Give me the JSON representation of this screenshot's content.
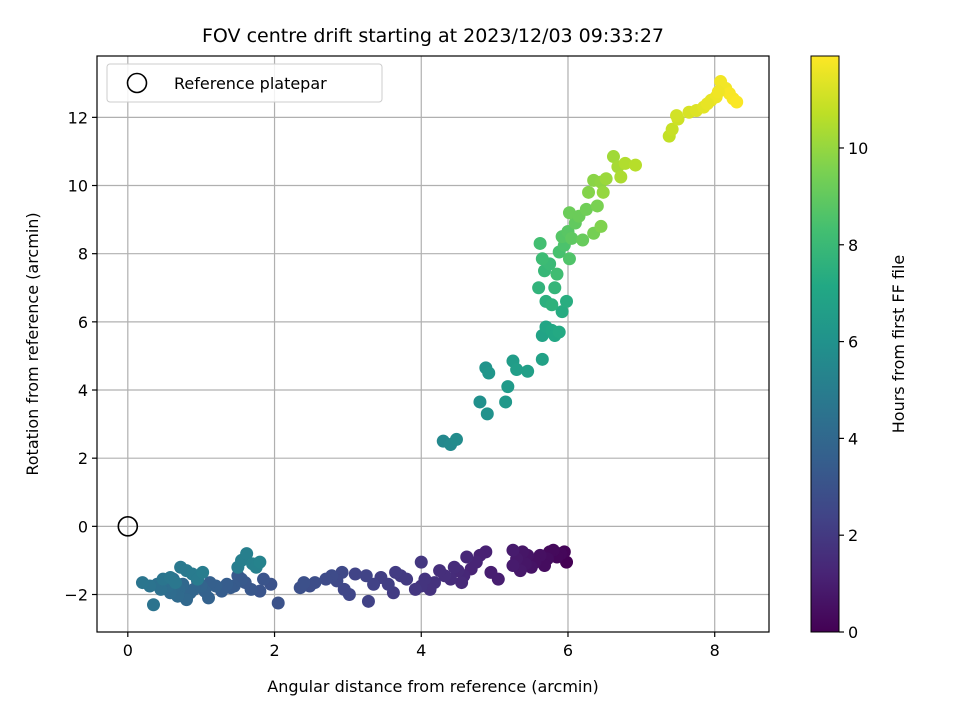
{
  "chart_data": {
    "type": "scatter",
    "title": "FOV centre drift starting at 2023/12/03 09:33:27",
    "xlabel": "Angular distance from reference (arcmin)",
    "ylabel": "Rotation from reference (arcmin)",
    "xlim": [
      -0.42,
      8.74
    ],
    "ylim": [
      -3.1,
      13.8
    ],
    "xticks": [
      0,
      2,
      4,
      6,
      8
    ],
    "yticks": [
      -2,
      0,
      2,
      4,
      6,
      8,
      10,
      12
    ],
    "grid": true,
    "legend": {
      "placement": "top-left",
      "entries": [
        "Reference platepar"
      ]
    },
    "reference_point": {
      "x": 0,
      "y": 0,
      "label": "Reference platepar"
    },
    "colorbar": {
      "label": "Hours from first FF file",
      "colormap": "viridis",
      "range": [
        0,
        11.9
      ],
      "ticks": [
        0,
        2,
        4,
        6,
        8,
        10
      ]
    },
    "points": [
      {
        "x": 5.98,
        "y": -1.05,
        "h": 0.0
      },
      {
        "x": 5.95,
        "y": -0.75,
        "h": 0.1
      },
      {
        "x": 5.9,
        "y": -0.8,
        "h": 0.2
      },
      {
        "x": 5.85,
        "y": -0.9,
        "h": 0.2
      },
      {
        "x": 5.8,
        "y": -0.7,
        "h": 0.3
      },
      {
        "x": 5.75,
        "y": -0.75,
        "h": 0.3
      },
      {
        "x": 5.72,
        "y": -0.95,
        "h": 0.4
      },
      {
        "x": 5.68,
        "y": -1.15,
        "h": 0.4
      },
      {
        "x": 5.62,
        "y": -0.85,
        "h": 0.5
      },
      {
        "x": 5.55,
        "y": -1.05,
        "h": 0.5
      },
      {
        "x": 5.5,
        "y": -1.2,
        "h": 0.6
      },
      {
        "x": 5.45,
        "y": -0.85,
        "h": 0.6
      },
      {
        "x": 5.42,
        "y": -1.1,
        "h": 0.7
      },
      {
        "x": 5.38,
        "y": -0.75,
        "h": 0.7
      },
      {
        "x": 5.35,
        "y": -1.3,
        "h": 0.8
      },
      {
        "x": 5.3,
        "y": -0.95,
        "h": 0.8
      },
      {
        "x": 5.25,
        "y": -0.7,
        "h": 0.9
      },
      {
        "x": 5.25,
        "y": -1.15,
        "h": 0.9
      },
      {
        "x": 5.05,
        "y": -1.55,
        "h": 1.0
      },
      {
        "x": 4.95,
        "y": -1.35,
        "h": 1.0
      },
      {
        "x": 4.88,
        "y": -0.75,
        "h": 1.1
      },
      {
        "x": 4.8,
        "y": -0.85,
        "h": 1.1
      },
      {
        "x": 4.75,
        "y": -1.05,
        "h": 1.2
      },
      {
        "x": 4.68,
        "y": -1.25,
        "h": 1.2
      },
      {
        "x": 4.62,
        "y": -0.9,
        "h": 1.3
      },
      {
        "x": 4.58,
        "y": -1.45,
        "h": 1.3
      },
      {
        "x": 4.55,
        "y": -1.65,
        "h": 1.4
      },
      {
        "x": 4.5,
        "y": -1.3,
        "h": 1.4
      },
      {
        "x": 4.45,
        "y": -1.2,
        "h": 1.5
      },
      {
        "x": 4.4,
        "y": -1.55,
        "h": 1.5
      },
      {
        "x": 4.32,
        "y": -1.45,
        "h": 1.6
      },
      {
        "x": 4.25,
        "y": -1.3,
        "h": 1.6
      },
      {
        "x": 4.18,
        "y": -1.65,
        "h": 1.7
      },
      {
        "x": 4.12,
        "y": -1.85,
        "h": 1.7
      },
      {
        "x": 4.05,
        "y": -1.55,
        "h": 1.8
      },
      {
        "x": 4.0,
        "y": -1.75,
        "h": 1.8
      },
      {
        "x": 4.0,
        "y": -1.05,
        "h": 1.9
      },
      {
        "x": 3.92,
        "y": -1.85,
        "h": 1.9
      },
      {
        "x": 3.8,
        "y": -1.55,
        "h": 2.0
      },
      {
        "x": 3.72,
        "y": -1.45,
        "h": 2.0
      },
      {
        "x": 3.65,
        "y": -1.35,
        "h": 2.1
      },
      {
        "x": 3.62,
        "y": -1.95,
        "h": 2.1
      },
      {
        "x": 3.55,
        "y": -1.7,
        "h": 2.2
      },
      {
        "x": 3.45,
        "y": -1.5,
        "h": 2.2
      },
      {
        "x": 3.35,
        "y": -1.7,
        "h": 2.3
      },
      {
        "x": 3.28,
        "y": -2.2,
        "h": 2.3
      },
      {
        "x": 3.25,
        "y": -1.45,
        "h": 2.4
      },
      {
        "x": 3.1,
        "y": -1.4,
        "h": 2.4
      },
      {
        "x": 3.02,
        "y": -2.0,
        "h": 2.5
      },
      {
        "x": 2.95,
        "y": -1.85,
        "h": 2.5
      },
      {
        "x": 2.92,
        "y": -1.35,
        "h": 2.6
      },
      {
        "x": 2.85,
        "y": -1.6,
        "h": 2.6
      },
      {
        "x": 2.78,
        "y": -1.45,
        "h": 2.7
      },
      {
        "x": 2.7,
        "y": -1.55,
        "h": 2.7
      },
      {
        "x": 2.55,
        "y": -1.65,
        "h": 2.8
      },
      {
        "x": 2.48,
        "y": -1.75,
        "h": 2.8
      },
      {
        "x": 2.4,
        "y": -1.65,
        "h": 2.9
      },
      {
        "x": 2.35,
        "y": -1.8,
        "h": 2.9
      },
      {
        "x": 2.05,
        "y": -2.25,
        "h": 3.0
      },
      {
        "x": 1.95,
        "y": -1.7,
        "h": 3.0
      },
      {
        "x": 1.85,
        "y": -1.55,
        "h": 3.1
      },
      {
        "x": 1.8,
        "y": -1.9,
        "h": 3.1
      },
      {
        "x": 1.68,
        "y": -1.85,
        "h": 3.2
      },
      {
        "x": 1.6,
        "y": -1.65,
        "h": 3.2
      },
      {
        "x": 1.55,
        "y": -1.55,
        "h": 3.3
      },
      {
        "x": 1.5,
        "y": -1.45,
        "h": 3.3
      },
      {
        "x": 1.45,
        "y": -1.75,
        "h": 3.4
      },
      {
        "x": 1.4,
        "y": -1.8,
        "h": 3.4
      },
      {
        "x": 1.35,
        "y": -1.7,
        "h": 3.5
      },
      {
        "x": 1.28,
        "y": -1.9,
        "h": 3.5
      },
      {
        "x": 1.2,
        "y": -1.75,
        "h": 3.6
      },
      {
        "x": 1.12,
        "y": -1.65,
        "h": 3.6
      },
      {
        "x": 1.1,
        "y": -2.1,
        "h": 3.7
      },
      {
        "x": 1.05,
        "y": -1.9,
        "h": 3.7
      },
      {
        "x": 1.0,
        "y": -1.75,
        "h": 3.8
      },
      {
        "x": 0.95,
        "y": -1.6,
        "h": 3.8
      },
      {
        "x": 0.9,
        "y": -1.85,
        "h": 3.9
      },
      {
        "x": 0.85,
        "y": -1.95,
        "h": 3.9
      },
      {
        "x": 0.8,
        "y": -2.15,
        "h": 4.0
      },
      {
        "x": 0.75,
        "y": -1.7,
        "h": 4.0
      },
      {
        "x": 0.7,
        "y": -1.85,
        "h": 4.1
      },
      {
        "x": 0.68,
        "y": -2.05,
        "h": 4.1
      },
      {
        "x": 0.62,
        "y": -1.55,
        "h": 4.2
      },
      {
        "x": 0.58,
        "y": -1.95,
        "h": 4.2
      },
      {
        "x": 0.55,
        "y": -1.75,
        "h": 4.3
      },
      {
        "x": 0.5,
        "y": -1.6,
        "h": 4.3
      },
      {
        "x": 0.45,
        "y": -1.85,
        "h": 4.4
      },
      {
        "x": 0.4,
        "y": -1.7,
        "h": 4.4
      },
      {
        "x": 0.35,
        "y": -2.3,
        "h": 4.5
      },
      {
        "x": 0.3,
        "y": -1.75,
        "h": 4.5
      },
      {
        "x": 0.2,
        "y": -1.65,
        "h": 4.6
      },
      {
        "x": 0.48,
        "y": -1.55,
        "h": 4.6
      },
      {
        "x": 0.58,
        "y": -1.5,
        "h": 4.7
      },
      {
        "x": 0.65,
        "y": -1.65,
        "h": 4.7
      },
      {
        "x": 0.72,
        "y": -1.2,
        "h": 4.8
      },
      {
        "x": 0.8,
        "y": -1.3,
        "h": 4.8
      },
      {
        "x": 0.88,
        "y": -1.4,
        "h": 4.9
      },
      {
        "x": 0.95,
        "y": -1.55,
        "h": 4.9
      },
      {
        "x": 1.02,
        "y": -1.35,
        "h": 5.0
      },
      {
        "x": 1.5,
        "y": -1.2,
        "h": 5.0
      },
      {
        "x": 1.55,
        "y": -1.0,
        "h": 5.1
      },
      {
        "x": 1.62,
        "y": -0.8,
        "h": 5.1
      },
      {
        "x": 1.7,
        "y": -1.1,
        "h": 5.2
      },
      {
        "x": 1.75,
        "y": -1.2,
        "h": 5.2
      },
      {
        "x": 1.8,
        "y": -1.05,
        "h": 5.3
      },
      {
        "x": 4.3,
        "y": 2.5,
        "h": 5.5
      },
      {
        "x": 4.4,
        "y": 2.4,
        "h": 5.6
      },
      {
        "x": 4.48,
        "y": 2.55,
        "h": 5.7
      },
      {
        "x": 4.8,
        "y": 3.65,
        "h": 5.9
      },
      {
        "x": 4.9,
        "y": 3.3,
        "h": 6.0
      },
      {
        "x": 4.88,
        "y": 4.65,
        "h": 6.1
      },
      {
        "x": 4.92,
        "y": 4.5,
        "h": 6.2
      },
      {
        "x": 5.15,
        "y": 3.65,
        "h": 6.3
      },
      {
        "x": 5.18,
        "y": 4.1,
        "h": 6.4
      },
      {
        "x": 5.25,
        "y": 4.85,
        "h": 6.5
      },
      {
        "x": 5.3,
        "y": 4.6,
        "h": 6.6
      },
      {
        "x": 5.45,
        "y": 4.55,
        "h": 6.7
      },
      {
        "x": 5.65,
        "y": 4.9,
        "h": 6.8
      },
      {
        "x": 5.65,
        "y": 5.6,
        "h": 6.9
      },
      {
        "x": 5.7,
        "y": 5.85,
        "h": 7.0
      },
      {
        "x": 5.78,
        "y": 5.75,
        "h": 7.1
      },
      {
        "x": 5.82,
        "y": 5.6,
        "h": 7.1
      },
      {
        "x": 5.88,
        "y": 5.7,
        "h": 7.2
      },
      {
        "x": 5.92,
        "y": 6.3,
        "h": 7.3
      },
      {
        "x": 5.98,
        "y": 6.6,
        "h": 7.4
      },
      {
        "x": 5.7,
        "y": 6.6,
        "h": 7.5
      },
      {
        "x": 5.78,
        "y": 6.5,
        "h": 7.6
      },
      {
        "x": 5.6,
        "y": 7.0,
        "h": 7.7
      },
      {
        "x": 5.82,
        "y": 7.0,
        "h": 7.8
      },
      {
        "x": 5.68,
        "y": 7.5,
        "h": 7.9
      },
      {
        "x": 5.75,
        "y": 7.7,
        "h": 8.0
      },
      {
        "x": 5.65,
        "y": 7.85,
        "h": 8.1
      },
      {
        "x": 5.85,
        "y": 7.4,
        "h": 8.2
      },
      {
        "x": 5.62,
        "y": 8.3,
        "h": 8.3
      },
      {
        "x": 5.88,
        "y": 8.05,
        "h": 8.4
      },
      {
        "x": 5.95,
        "y": 8.25,
        "h": 8.5
      },
      {
        "x": 6.02,
        "y": 7.85,
        "h": 8.6
      },
      {
        "x": 5.92,
        "y": 8.5,
        "h": 8.7
      },
      {
        "x": 6.0,
        "y": 8.65,
        "h": 8.8
      },
      {
        "x": 6.05,
        "y": 8.45,
        "h": 8.9
      },
      {
        "x": 6.1,
        "y": 8.9,
        "h": 9.0
      },
      {
        "x": 6.2,
        "y": 8.4,
        "h": 9.1
      },
      {
        "x": 6.02,
        "y": 9.2,
        "h": 9.2
      },
      {
        "x": 6.15,
        "y": 9.1,
        "h": 9.2
      },
      {
        "x": 6.25,
        "y": 9.3,
        "h": 9.3
      },
      {
        "x": 6.35,
        "y": 8.6,
        "h": 9.4
      },
      {
        "x": 6.4,
        "y": 9.4,
        "h": 9.5
      },
      {
        "x": 6.45,
        "y": 8.8,
        "h": 9.6
      },
      {
        "x": 6.28,
        "y": 9.8,
        "h": 9.7
      },
      {
        "x": 6.35,
        "y": 10.15,
        "h": 9.8
      },
      {
        "x": 6.45,
        "y": 10.1,
        "h": 9.9
      },
      {
        "x": 6.48,
        "y": 9.8,
        "h": 10.0
      },
      {
        "x": 6.52,
        "y": 10.2,
        "h": 10.1
      },
      {
        "x": 6.62,
        "y": 10.85,
        "h": 10.2
      },
      {
        "x": 6.68,
        "y": 10.55,
        "h": 10.3
      },
      {
        "x": 6.72,
        "y": 10.25,
        "h": 10.4
      },
      {
        "x": 6.78,
        "y": 10.65,
        "h": 10.5
      },
      {
        "x": 6.92,
        "y": 10.6,
        "h": 10.6
      },
      {
        "x": 7.38,
        "y": 11.45,
        "h": 10.8
      },
      {
        "x": 7.42,
        "y": 11.65,
        "h": 10.9
      },
      {
        "x": 7.5,
        "y": 11.95,
        "h": 11.0
      },
      {
        "x": 7.48,
        "y": 12.05,
        "h": 11.1
      },
      {
        "x": 7.65,
        "y": 12.15,
        "h": 11.2
      },
      {
        "x": 7.75,
        "y": 12.2,
        "h": 11.3
      },
      {
        "x": 7.85,
        "y": 12.3,
        "h": 11.4
      },
      {
        "x": 7.95,
        "y": 12.5,
        "h": 11.5
      },
      {
        "x": 8.02,
        "y": 12.6,
        "h": 11.6
      },
      {
        "x": 8.08,
        "y": 13.05,
        "h": 11.7
      },
      {
        "x": 8.15,
        "y": 12.85,
        "h": 11.7
      },
      {
        "x": 8.2,
        "y": 12.7,
        "h": 11.8
      },
      {
        "x": 8.25,
        "y": 12.55,
        "h": 11.8
      },
      {
        "x": 8.3,
        "y": 12.45,
        "h": 11.85
      },
      {
        "x": 7.9,
        "y": 12.4,
        "h": 11.5
      },
      {
        "x": 8.05,
        "y": 12.75,
        "h": 11.65
      }
    ]
  }
}
